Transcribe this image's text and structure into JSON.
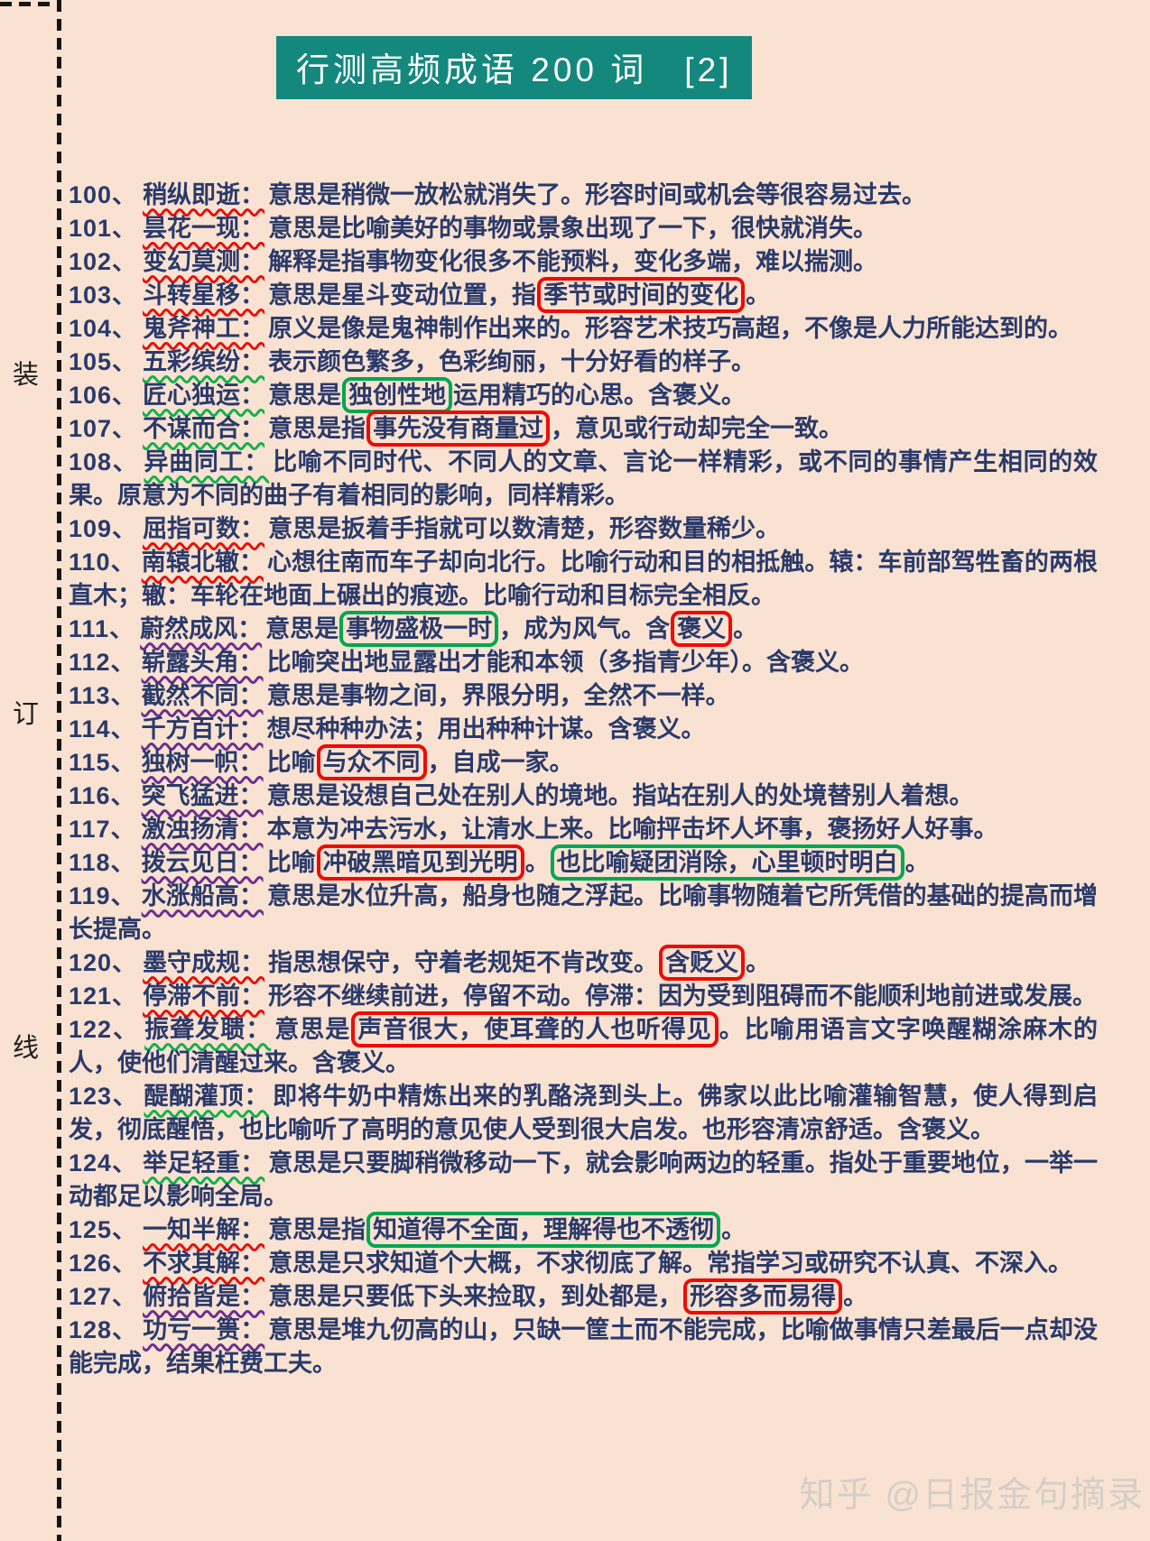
{
  "page": {
    "title": "行测高频成语 200 词　[2]",
    "binding_labels": [
      "装",
      "订",
      "线"
    ],
    "watermark": "知乎 @日报金句摘录",
    "colors": {
      "background": "#F9E2D1",
      "title_background": "#15887E",
      "body_text": "#2A3A6B",
      "underline_red": "#E8100C",
      "underline_green": "#12B04A",
      "underline_purple": "#6B2E8F",
      "box_red": "#EE0B07",
      "box_green": "#00A651"
    }
  },
  "entries": [
    {
      "num": "100",
      "idiom": "稍纵即逝",
      "u": "red",
      "def": [
        {
          "t": "意思是稍微一放松就消失了。形容时间或机会等很容易过去。"
        }
      ]
    },
    {
      "num": "101",
      "idiom": "昙花一现",
      "u": "red",
      "def": [
        {
          "t": "意思是比喻美好的事物或景象出现了一下，很快就消失。"
        }
      ]
    },
    {
      "num": "102",
      "idiom": "变幻莫测",
      "u": "red",
      "def": [
        {
          "t": "解释是指事物变化很多不能预料，变化多端，难以揣测。"
        }
      ]
    },
    {
      "num": "103",
      "idiom": "斗转星移",
      "u": "red",
      "def": [
        {
          "t": "意思是星斗变动位置，指"
        },
        {
          "t": "季节或时间的变化",
          "box": "red"
        },
        {
          "t": "。"
        }
      ]
    },
    {
      "num": "104",
      "idiom": "鬼斧神工",
      "u": "red",
      "def": [
        {
          "t": "原义是像是鬼神制作出来的。形容艺术技巧高超，不像是人力所能达到的。"
        }
      ]
    },
    {
      "num": "105",
      "idiom": "五彩缤纷",
      "u": "green",
      "def": [
        {
          "t": "表示颜色繁多，色彩绚丽，十分好看的样子。"
        }
      ]
    },
    {
      "num": "106",
      "idiom": "匠心独运",
      "u": "green",
      "def": [
        {
          "t": "意思是"
        },
        {
          "t": "独创性地",
          "box": "green"
        },
        {
          "t": "运用精巧的心思。含褒义。"
        }
      ]
    },
    {
      "num": "107",
      "idiom": "不谋而合",
      "u": "green",
      "def": [
        {
          "t": "意思是指"
        },
        {
          "t": "事先没有商量过",
          "box": "red"
        },
        {
          "t": "，意见或行动却完全一致。"
        }
      ]
    },
    {
      "num": "108",
      "idiom": "异曲同工",
      "u": "green",
      "def": [
        {
          "t": "比喻不同时代、不同人的文章、言论一样精彩，或不同的事情产生相同的效果。原意为不同的曲子有着相同的影响，同样精彩。"
        }
      ]
    },
    {
      "num": "109",
      "idiom": "屈指可数",
      "u": "red",
      "def": [
        {
          "t": "意思是扳着手指就可以数清楚，形容数量稀少。"
        }
      ]
    },
    {
      "num": "110",
      "idiom": "南辕北辙",
      "u": "red",
      "def": [
        {
          "t": "心想往南而车子却向北行。比喻行动和目的相抵触。辕：车前部驾牲畜的两根直木；辙：车轮在地面上碾出的痕迹。比喻行动和目标完全相反。"
        }
      ]
    },
    {
      "num": "111",
      "idiom": "蔚然成风",
      "u": "purple",
      "def": [
        {
          "t": "意思是"
        },
        {
          "t": "事物盛极一时",
          "box": "green"
        },
        {
          "t": "，成为风气。含"
        },
        {
          "t": "褒义",
          "box": "red"
        },
        {
          "t": "。"
        }
      ]
    },
    {
      "num": "112",
      "idiom": "崭露头角",
      "u": "purple",
      "def": [
        {
          "t": "比喻突出地显露出才能和本领（多指青少年）。含褒义。"
        }
      ]
    },
    {
      "num": "113",
      "idiom": "截然不同",
      "u": "purple",
      "def": [
        {
          "t": "意思是事物之间，界限分明，全然不一样。"
        }
      ]
    },
    {
      "num": "114",
      "idiom": "千方百计",
      "u": "purple",
      "def": [
        {
          "t": "想尽种种办法；用出种种计谋。含褒义。"
        }
      ]
    },
    {
      "num": "115",
      "idiom": "独树一帜",
      "u": "purple",
      "def": [
        {
          "t": "比喻"
        },
        {
          "t": "与众不同",
          "box": "red"
        },
        {
          "t": "，自成一家。"
        }
      ]
    },
    {
      "num": "116",
      "idiom": "突飞猛进",
      "u": "purple",
      "def": [
        {
          "t": "意思是设想自己处在别人的境地。指站在别人的处境替别人着想。"
        }
      ]
    },
    {
      "num": "117",
      "idiom": "激浊扬清",
      "u": "purple",
      "def": [
        {
          "t": "本意为冲去污水，让清水上来。比喻抨击坏人坏事，褒扬好人好事。"
        }
      ]
    },
    {
      "num": "118",
      "idiom": "拨云见日",
      "u": "purple",
      "def": [
        {
          "t": "比喻"
        },
        {
          "t": "冲破黑暗见到光明",
          "box": "red"
        },
        {
          "t": "。"
        },
        {
          "t": "也比喻疑团消除，心里顿时明白",
          "box": "green"
        },
        {
          "t": "。"
        }
      ]
    },
    {
      "num": "119",
      "idiom": "水涨船高",
      "u": "purple",
      "def": [
        {
          "t": "意思是水位升高，船身也随之浮起。比喻事物随着它所凭借的基础的提高而增长提高。"
        }
      ]
    },
    {
      "num": "120",
      "idiom": "墨守成规",
      "u": "red",
      "def": [
        {
          "t": "指思想保守，守着老规矩不肯改变。"
        },
        {
          "t": "含贬义",
          "box": "red"
        },
        {
          "t": "。"
        }
      ]
    },
    {
      "num": "121",
      "idiom": "停滞不前",
      "u": "red",
      "def": [
        {
          "t": "形容不继续前进，停留不动。停滞：因为受到阻碍而不能顺利地前进或发展。"
        }
      ]
    },
    {
      "num": "122",
      "idiom": "振聋发聩",
      "u": "green",
      "def": [
        {
          "t": "意思是"
        },
        {
          "t": "声音很大，使耳聋的人也听得见",
          "box": "red"
        },
        {
          "t": "。比喻用语言文字唤醒糊涂麻木的人，使他们清醒过来。含褒义。"
        }
      ]
    },
    {
      "num": "123",
      "idiom": "醍醐灌顶",
      "u": "green",
      "def": [
        {
          "t": "即将牛奶中精炼出来的乳酪浇到头上。佛家以此比喻灌输智慧，使人得到启发，彻底醒悟，也比喻听了高明的意见使人受到很大启发。也形容清凉舒适。含褒义。"
        }
      ]
    },
    {
      "num": "124",
      "idiom": "举足轻重",
      "u": "green",
      "def": [
        {
          "t": "意思是只要脚稍微移动一下，就会影响两边的轻重。指处于重要地位，一举一动都足以影响全局。"
        }
      ]
    },
    {
      "num": "125",
      "idiom": "一知半解",
      "u": "red",
      "def": [
        {
          "t": "意思是指"
        },
        {
          "t": "知道得不全面，理解得也不透彻",
          "box": "green"
        },
        {
          "t": "。"
        }
      ]
    },
    {
      "num": "126",
      "idiom": "不求其解",
      "u": "red",
      "def": [
        {
          "t": "意思是只求知道个大概，不求彻底了解。常指学习或研究不认真、不深入。"
        }
      ]
    },
    {
      "num": "127",
      "idiom": "俯拾皆是",
      "u": "purple",
      "def": [
        {
          "t": "意思是只要低下头来捡取，到处都是，"
        },
        {
          "t": "形容多而易得",
          "box": "red"
        },
        {
          "t": "。"
        }
      ]
    },
    {
      "num": "128",
      "idiom": "功亏一篑",
      "u": "purple",
      "def": [
        {
          "t": "意思是堆九仞高的山，只缺一筐土而不能完成，比喻做事情只差最后一点却没能完成，结果枉费工夫。"
        }
      ]
    }
  ]
}
